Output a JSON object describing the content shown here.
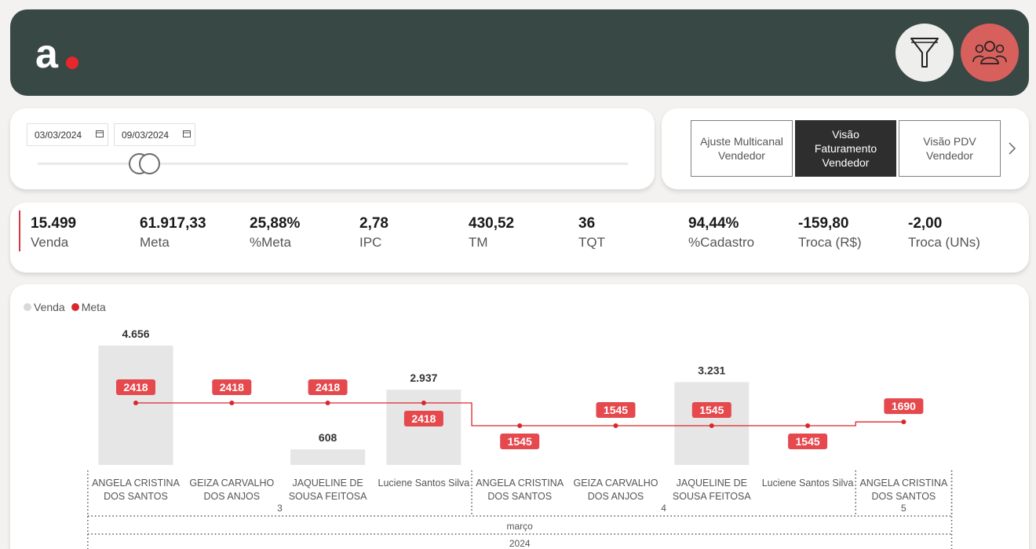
{
  "header": {
    "logo_icon": "logo-a-dot",
    "filter_icon": "filter-funnel-icon",
    "people_icon": "people-group-icon"
  },
  "date_range": {
    "start": "03/03/2024",
    "end": "09/03/2024"
  },
  "views": {
    "items": [
      {
        "label": "Ajuste Multicanal Vendedor"
      },
      {
        "label": "Visão Faturamento Vendedor"
      },
      {
        "label": "Visão PDV Vendedor"
      }
    ],
    "active_index": 1
  },
  "kpis": [
    {
      "value": "15.499",
      "label": "Venda"
    },
    {
      "value": "61.917,33",
      "label": "Meta"
    },
    {
      "value": "25,88%",
      "label": "%Meta"
    },
    {
      "value": "2,78",
      "label": "IPC"
    },
    {
      "value": "430,52",
      "label": "TM"
    },
    {
      "value": "36",
      "label": "TQT"
    },
    {
      "value": "94,44%",
      "label": "%Cadastro"
    },
    {
      "value": "-159,80",
      "label": "Troca (R$)"
    },
    {
      "value": "-2,00",
      "label": "Troca (UNs)"
    }
  ],
  "colors": {
    "header_bg": "#384845",
    "accent_red": "#e5484d",
    "meta_line": "#d9272e",
    "bar_gray": "#e6e6e6"
  },
  "chart_data": {
    "type": "bar",
    "legend": [
      {
        "name": "Venda",
        "color": "#d9d9d9"
      },
      {
        "name": "Meta",
        "color": "#d9272e"
      }
    ],
    "categories": [
      "ANGELA CRISTINA DOS SANTOS",
      "GEIZA CARVALHO DOS ANJOS",
      "JAQUELINE DE SOUSA FEITOSA",
      "Luciene Santos Silva",
      "ANGELA CRISTINA DOS SANTOS",
      "GEIZA CARVALHO DOS ANJOS",
      "JAQUELINE DE SOUSA FEITOSA",
      "Luciene Santos Silva",
      "ANGELA CRISTINA DOS SANTOS"
    ],
    "groups": [
      {
        "label": "3",
        "count": 4
      },
      {
        "label": "4",
        "count": 4
      },
      {
        "label": "5",
        "count": 1
      }
    ],
    "month": "março",
    "year": "2024",
    "series": [
      {
        "name": "Venda",
        "values": [
          4656,
          null,
          608,
          2937,
          null,
          null,
          3231,
          null,
          null
        ],
        "labels": [
          "4.656",
          "",
          "608",
          "2.937",
          "",
          "",
          "3.231",
          "",
          ""
        ]
      },
      {
        "name": "Meta",
        "values": [
          2418,
          2418,
          2418,
          2418,
          1545,
          1545,
          1545,
          1545,
          1690
        ],
        "labels": [
          "2418",
          "2418",
          "2418",
          "2418",
          "1545",
          "1545",
          "1545",
          "1545",
          "1690"
        ]
      }
    ],
    "meta_label_position": [
      "above",
      "above",
      "above",
      "below",
      "below",
      "above",
      "above",
      "below",
      "above"
    ]
  }
}
